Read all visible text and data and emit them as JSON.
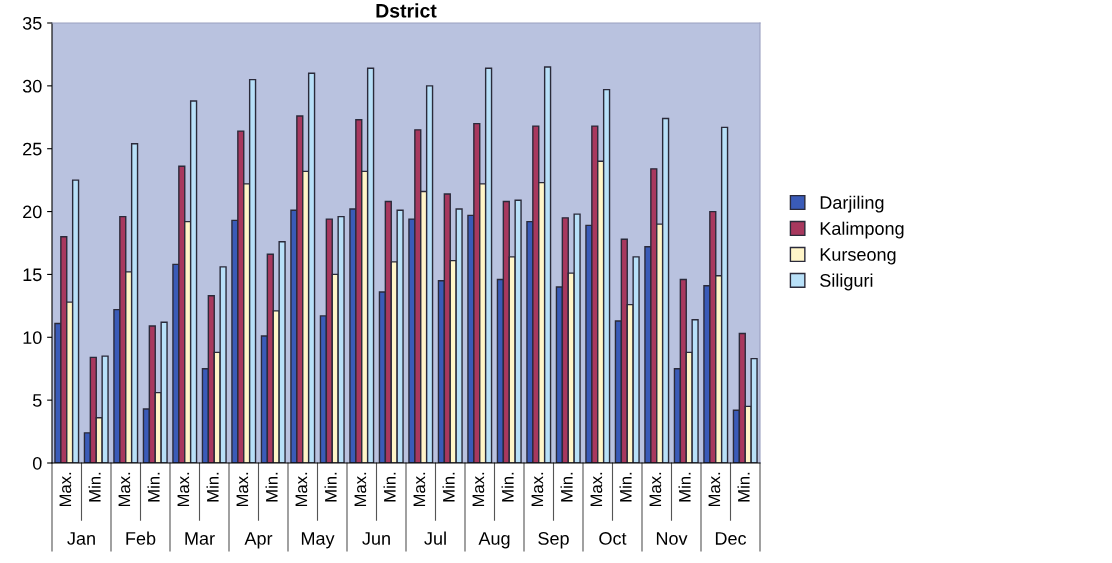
{
  "chart_data": {
    "type": "bar",
    "title": "Dstrict",
    "categories": [
      "Max.",
      "Min.",
      "Max.",
      "Min.",
      "Max.",
      "Min.",
      "Max.",
      "Min.",
      "Max.",
      "Min.",
      "Max.",
      "Min.",
      "Max.",
      "Min.",
      "Max.",
      "Min.",
      "Max.",
      "Min.",
      "Max.",
      "Min.",
      "Max.",
      "Min.",
      "Max.",
      "Min."
    ],
    "annotations": [
      "Jan",
      "Feb",
      "Mar",
      "Apr",
      "May",
      "Jun",
      "Jul",
      "Aug",
      "Sep",
      "Oct",
      "Nov",
      "Dec"
    ],
    "series": [
      {
        "name": "Darjiling",
        "color": "#3a5bb8",
        "values": [
          11.1,
          2.4,
          12.2,
          4.3,
          15.8,
          7.5,
          19.3,
          10.1,
          20.1,
          11.7,
          20.2,
          13.6,
          19.4,
          14.5,
          19.7,
          14.6,
          19.2,
          14.0,
          18.9,
          11.3,
          17.2,
          7.5,
          14.1,
          4.2
        ]
      },
      {
        "name": "Kalimpong",
        "color": "#a8385e",
        "values": [
          18.0,
          8.4,
          19.6,
          10.9,
          23.6,
          13.3,
          26.4,
          16.6,
          27.6,
          19.4,
          27.3,
          20.8,
          26.5,
          21.4,
          27.0,
          20.8,
          26.8,
          19.5,
          26.8,
          17.8,
          23.4,
          14.6,
          20.0,
          10.3
        ]
      },
      {
        "name": "Kurseong",
        "color": "#fff5c8",
        "values": [
          12.8,
          3.6,
          15.2,
          5.6,
          19.2,
          8.8,
          22.2,
          12.1,
          23.2,
          15.0,
          23.2,
          16.0,
          21.6,
          16.1,
          22.2,
          16.4,
          22.3,
          15.1,
          24.0,
          12.6,
          19.0,
          8.8,
          14.9,
          4.5
        ]
      },
      {
        "name": "Siliguri",
        "color": "#b8e0f8",
        "values": [
          22.5,
          8.5,
          25.4,
          11.2,
          28.8,
          15.6,
          30.5,
          17.6,
          31.0,
          19.6,
          31.4,
          20.1,
          30.0,
          20.2,
          31.4,
          20.9,
          31.5,
          19.8,
          29.7,
          16.4,
          27.4,
          11.4,
          26.7,
          8.3
        ]
      }
    ],
    "ylim": [
      0,
      35
    ],
    "yticks": [
      0,
      5,
      10,
      15,
      20,
      25,
      30,
      35
    ],
    "grid": false,
    "legend": "right"
  }
}
